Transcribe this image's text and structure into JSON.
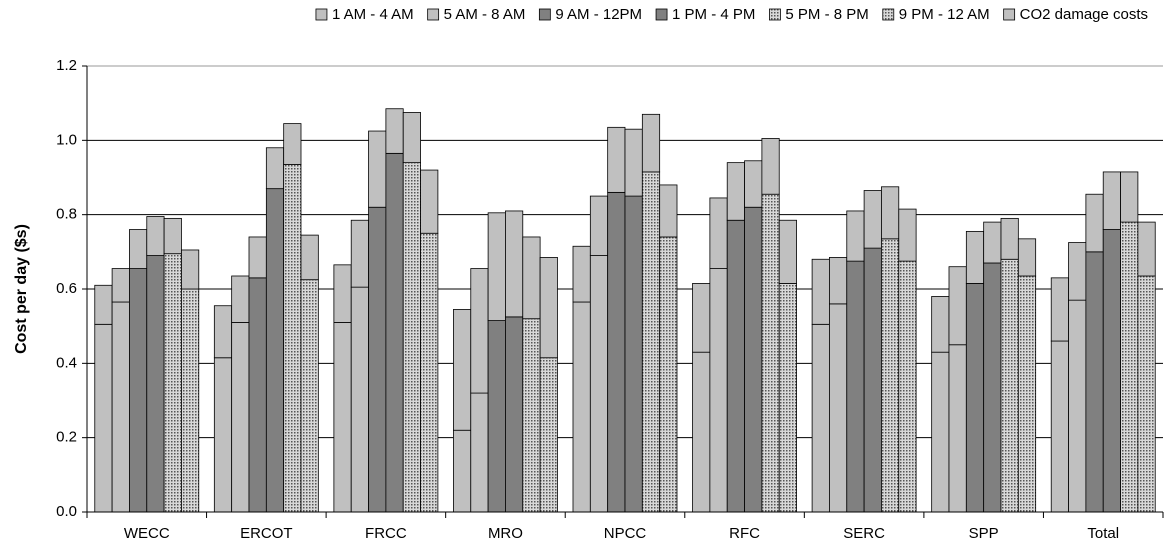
{
  "chart_data": {
    "type": "grouped-stacked-bar",
    "y_label": "Cost per day ($s)",
    "categories": [
      "WECC",
      "ERCOT",
      "FRCC",
      "MRO",
      "NPCC",
      "RFC",
      "SERC",
      "SPP",
      "Total"
    ],
    "series": [
      {
        "name": "1 AM - 4 AM",
        "color": "#c0c0c0",
        "values": [
          0.505,
          0.415,
          0.51,
          0.22,
          0.565,
          0.43,
          0.505,
          0.43,
          0.46
        ]
      },
      {
        "name": "5 AM - 8 AM",
        "color": "#c0c0c0",
        "values": [
          0.565,
          0.51,
          0.605,
          0.32,
          0.69,
          0.655,
          0.56,
          0.45,
          0.57
        ]
      },
      {
        "name": "9 AM - 12PM",
        "color": "#808080",
        "values": [
          0.655,
          0.63,
          0.82,
          0.515,
          0.86,
          0.785,
          0.675,
          0.615,
          0.7
        ]
      },
      {
        "name": "1 PM - 4 PM",
        "color": "#808080",
        "values": [
          0.69,
          0.87,
          0.965,
          0.525,
          0.85,
          0.82,
          0.71,
          0.67,
          0.76
        ]
      },
      {
        "name": "5 PM - 8 PM",
        "color": "#c8c8c8",
        "pattern": "dots",
        "values": [
          0.695,
          0.935,
          0.94,
          0.52,
          0.915,
          0.855,
          0.735,
          0.68,
          0.78
        ]
      },
      {
        "name": "9 PM - 12 AM",
        "color": "#c8c8c8",
        "pattern": "dots",
        "values": [
          0.6,
          0.625,
          0.75,
          0.415,
          0.74,
          0.615,
          0.675,
          0.635,
          0.635
        ]
      },
      {
        "name": "CO2 damage costs",
        "color": "#c0c0c0",
        "values": [
          [
            0.105,
            0.09,
            0.105,
            0.105,
            0.095,
            0.105
          ],
          [
            0.14,
            0.125,
            0.11,
            0.11,
            0.11,
            0.12
          ],
          [
            0.155,
            0.18,
            0.205,
            0.12,
            0.135,
            0.17
          ],
          [
            0.325,
            0.335,
            0.29,
            0.285,
            0.22,
            0.27
          ],
          [
            0.15,
            0.16,
            0.175,
            0.18,
            0.155,
            0.14
          ],
          [
            0.185,
            0.19,
            0.155,
            0.125,
            0.15,
            0.17
          ],
          [
            0.175,
            0.125,
            0.135,
            0.155,
            0.14,
            0.14
          ],
          [
            0.15,
            0.21,
            0.14,
            0.11,
            0.11,
            0.1
          ],
          [
            0.17,
            0.155,
            0.155,
            0.155,
            0.135,
            0.145
          ]
        ]
      }
    ],
    "ylim": [
      0,
      1.2
    ],
    "yticks": [
      {
        "value": 0,
        "label": "0.0"
      },
      0.2,
      0.4,
      0.6,
      0.8,
      {
        "value": 1,
        "label": "1.0"
      },
      1.2
    ],
    "grid": true,
    "legend": "top"
  }
}
